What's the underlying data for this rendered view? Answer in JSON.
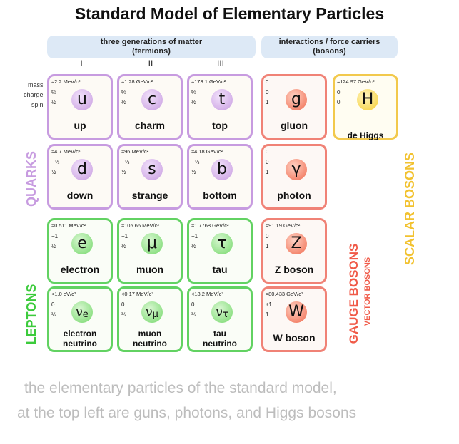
{
  "title": "Standard Model of Elementary Particles",
  "headers": {
    "fermions": [
      "three generations of matter",
      "(fermions)"
    ],
    "bosons": [
      "interactions / force carriers",
      "(bosons)"
    ]
  },
  "generations": [
    "I",
    "II",
    "III"
  ],
  "row_labels": [
    "mass",
    "charge",
    "spin"
  ],
  "particles": {
    "up": {
      "mass": "≈2.2 MeV/c²",
      "charge": "⅔",
      "spin": "½",
      "symbol": "u",
      "name": "up"
    },
    "charm": {
      "mass": "≈1.28 GeV/c²",
      "charge": "⅔",
      "spin": "½",
      "symbol": "c",
      "name": "charm"
    },
    "top": {
      "mass": "≈173.1 GeV/c²",
      "charge": "⅔",
      "spin": "½",
      "symbol": "t",
      "name": "top"
    },
    "gluon": {
      "mass": "0",
      "charge": "0",
      "spin": "1",
      "symbol": "g",
      "name": "gluon"
    },
    "higgs": {
      "mass": "≈124.97 GeV/c²",
      "charge": "0",
      "spin": "0",
      "symbol": "H",
      "name": "de Higgs"
    },
    "down": {
      "mass": "≈4.7 MeV/c²",
      "charge": "−⅓",
      "spin": "½",
      "symbol": "d",
      "name": "down"
    },
    "strange": {
      "mass": "≈96 MeV/c²",
      "charge": "−⅓",
      "spin": "½",
      "symbol": "s",
      "name": "strange"
    },
    "bottom": {
      "mass": "≈4.18 GeV/c²",
      "charge": "−⅓",
      "spin": "½",
      "symbol": "b",
      "name": "bottom"
    },
    "photon": {
      "mass": "0",
      "charge": "0",
      "spin": "1",
      "symbol": "γ",
      "name": "photon"
    },
    "electron": {
      "mass": "≈0.511 MeV/c²",
      "charge": "−1",
      "spin": "½",
      "symbol": "e",
      "name": "electron"
    },
    "muon": {
      "mass": "≈105.66 MeV/c²",
      "charge": "−1",
      "spin": "½",
      "symbol": "μ",
      "name": "muon"
    },
    "tau": {
      "mass": "≈1.7768 GeV/c²",
      "charge": "−1",
      "spin": "½",
      "symbol": "τ",
      "name": "tau"
    },
    "zboson": {
      "mass": "≈91.19 GeV/c²",
      "charge": "0",
      "spin": "1",
      "symbol": "Z",
      "name": "Z boson"
    },
    "e_neutrino": {
      "mass": "<1.0 eV/c²",
      "charge": "0",
      "spin": "½",
      "symbol": "ν",
      "sub": "e",
      "name1": "electron",
      "name2": "neutrino"
    },
    "mu_neutrino": {
      "mass": "<0.17 MeV/c²",
      "charge": "0",
      "spin": "½",
      "symbol": "ν",
      "sub": "μ",
      "name1": "muon",
      "name2": "neutrino"
    },
    "tau_neutrino": {
      "mass": "<18.2 MeV/c²",
      "charge": "0",
      "spin": "½",
      "symbol": "ν",
      "sub": "τ",
      "name1": "tau",
      "name2": "neutrino"
    },
    "wboson": {
      "mass": "≈80.433 GeV/c²",
      "charge": "±1",
      "spin": "1",
      "symbol": "W",
      "name": "W boson"
    }
  },
  "side_labels": {
    "quarks": "QUARKS",
    "leptons": "LEPTONS",
    "gauge": "GAUGE BOSONS",
    "vector": "VECTOR BOSONS",
    "scalar": "SCALAR BOSONS"
  },
  "colors": {
    "quarks": "#c79be0",
    "leptons": "#3ccb3c",
    "gauge": "#f05a48",
    "scalar": "#f2c230"
  },
  "caption": [
    "the elementary particles of the standard model,",
    "at the top left are guns, photons, and Higgs bosons"
  ]
}
